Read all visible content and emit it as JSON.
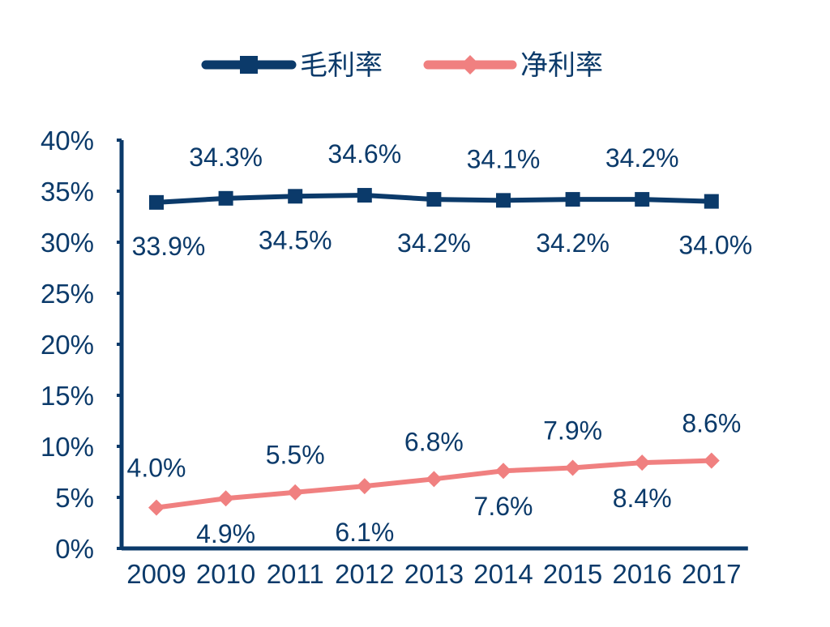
{
  "chart_data": {
    "type": "line",
    "categories": [
      "2009",
      "2010",
      "2011",
      "2012",
      "2013",
      "2014",
      "2015",
      "2016",
      "2017"
    ],
    "series": [
      {
        "name": "毛利率",
        "color": "#0b3a6a",
        "marker": "square",
        "values": [
          33.9,
          34.3,
          34.5,
          34.6,
          34.2,
          34.1,
          34.2,
          34.2,
          34.0
        ],
        "labels": [
          "33.9%",
          "34.3%",
          "34.5%",
          "34.6%",
          "34.2%",
          "34.1%",
          "34.2%",
          "34.2%",
          "34.0%"
        ]
      },
      {
        "name": "净利率",
        "color": "#f08080",
        "marker": "diamond",
        "values": [
          4.0,
          4.9,
          5.5,
          6.1,
          6.8,
          7.6,
          7.9,
          8.4,
          8.6
        ],
        "labels": [
          "4.0%",
          "4.9%",
          "5.5%",
          "6.1%",
          "6.8%",
          "7.6%",
          "7.9%",
          "8.4%",
          "8.6%"
        ]
      }
    ],
    "ylim": [
      0,
      40
    ],
    "yticks": [
      0,
      5,
      10,
      15,
      20,
      25,
      30,
      35,
      40
    ],
    "ytick_labels": [
      "0%",
      "5%",
      "10%",
      "15%",
      "20%",
      "25%",
      "30%",
      "35%",
      "40%"
    ],
    "grid": false,
    "legend_position": "top-center",
    "label_color": "#0b3a6a",
    "axis_color": "#0b3a6a"
  }
}
